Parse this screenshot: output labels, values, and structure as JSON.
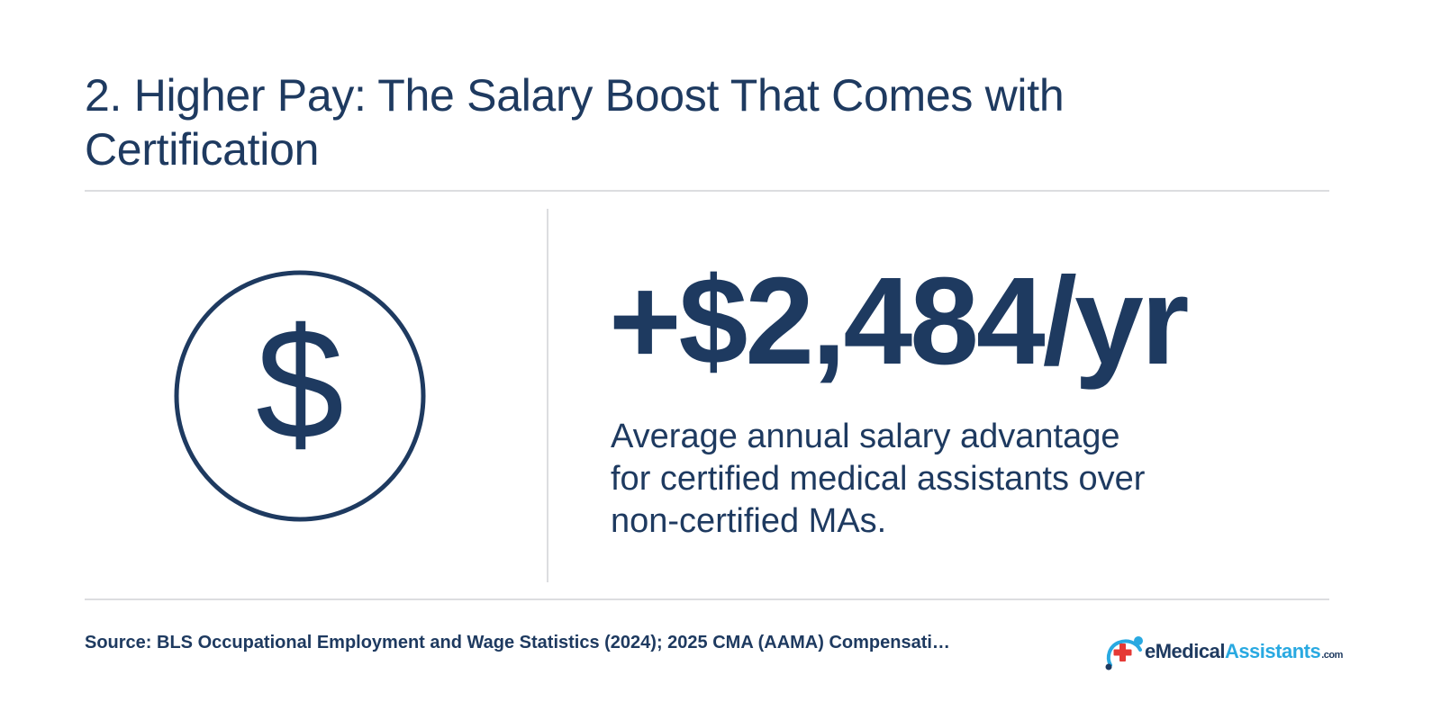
{
  "colors": {
    "text": "#1e3a60",
    "divider": "#dcdde0",
    "logo_blue": "#29a9e1",
    "logo_red": "#e53935"
  },
  "header": {
    "title": "2. Higher Pay: The Salary Boost That Comes with Certification"
  },
  "main": {
    "icon": {
      "name": "dollar-circle-icon",
      "glyph": "$"
    },
    "stat_value": "+$2,484/yr",
    "description": "Average annual salary advantage for certified medical assistants over non-certified MAs."
  },
  "footer": {
    "source": "Source: BLS Occupational Employment and Wage Statistics (2024); 2025 CMA (AAMA) Compensati…",
    "logo": {
      "prefix": "eMedical",
      "brand": "Assistants",
      "domain": ".com"
    }
  }
}
